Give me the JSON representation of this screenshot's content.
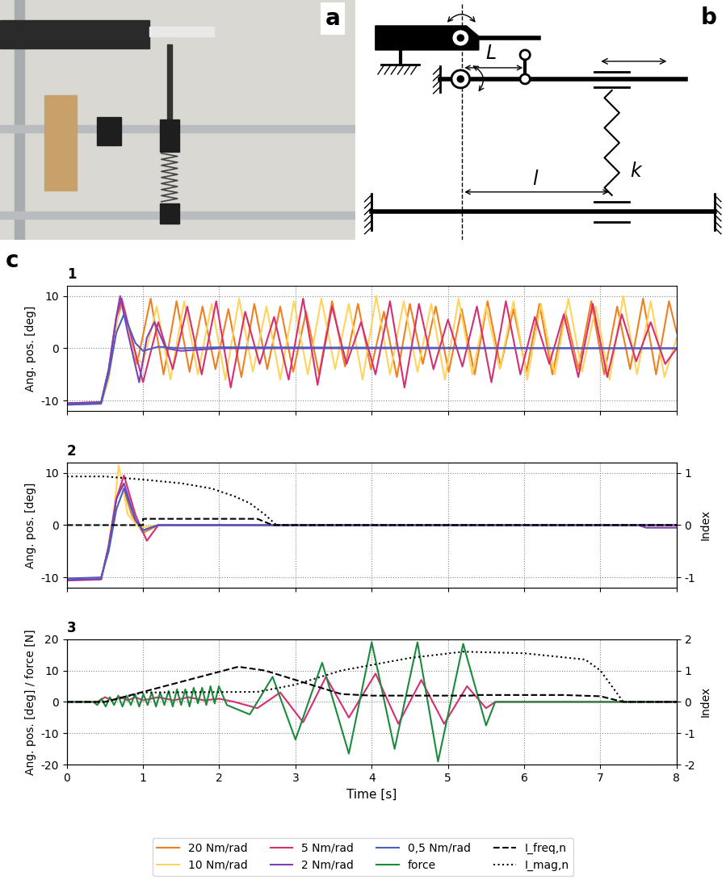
{
  "figure": {
    "panel_labels": {
      "photo": "a",
      "diagram": "b",
      "charts": "c"
    },
    "legend": "lower center"
  },
  "diagram": {
    "arm_label": "L",
    "spring_distance_label": "l",
    "spring_label": "k"
  },
  "chart_data": [
    {
      "type": "line",
      "title": "1",
      "y_label": "Ang. pos. [deg]",
      "xlim": [
        0,
        8
      ],
      "xticks": [
        0,
        1,
        2,
        3,
        4,
        5,
        6,
        7,
        8
      ],
      "ylim": [
        -12,
        12
      ],
      "yticks": [
        -10,
        0,
        10
      ],
      "grid": true,
      "tick_labels": "y",
      "series": [
        {
          "name": "20 Nm/rad",
          "color": "#f07f1e",
          "line_style": "solid",
          "x": [
            0,
            0.45,
            0.55,
            0.65,
            0.72,
            0.82,
            0.92,
            1.1,
            1.27,
            1.44,
            1.61,
            1.78,
            1.95,
            2.12,
            2.29,
            2.46,
            2.63,
            2.8,
            2.97,
            3.14,
            3.31,
            3.48,
            3.65,
            3.82,
            3.99,
            4.16,
            4.33,
            4.5,
            4.67,
            4.84,
            5.01,
            5.18,
            5.35,
            5.52,
            5.69,
            5.86,
            6.03,
            6.2,
            6.37,
            6.54,
            6.71,
            6.88,
            7.05,
            7.22,
            7.39,
            7.56,
            7.73,
            7.9,
            8.0
          ],
          "values": [
            -10.5,
            -10.3,
            -5,
            5,
            8.5,
            3,
            -3,
            9.5,
            -5,
            9,
            -4.5,
            8,
            -4,
            7.5,
            -5.5,
            8.5,
            -4,
            8,
            -4.5,
            7,
            -5,
            9,
            -3.5,
            8.5,
            -4,
            7,
            -5.5,
            8.5,
            -3,
            8,
            -4.5,
            7.5,
            -5,
            9,
            -3.5,
            7.5,
            -4.5,
            8.5,
            -5,
            7,
            -4,
            9,
            -5,
            8,
            -4,
            9.5,
            -5,
            9,
            3
          ]
        },
        {
          "name": "10 Nm/rad",
          "color": "#ffd35c",
          "line_style": "solid",
          "x": [
            0,
            0.45,
            0.55,
            0.65,
            0.7,
            0.8,
            0.9,
            1.0,
            1.18,
            1.36,
            1.54,
            1.72,
            1.9,
            2.08,
            2.26,
            2.44,
            2.62,
            2.8,
            2.98,
            3.16,
            3.34,
            3.52,
            3.7,
            3.88,
            4.06,
            4.24,
            4.42,
            4.6,
            4.78,
            4.96,
            5.14,
            5.32,
            5.5,
            5.68,
            5.86,
            6.04,
            6.22,
            6.4,
            6.58,
            6.76,
            6.94,
            7.12,
            7.3,
            7.48,
            7.66,
            7.84,
            8.0
          ],
          "values": [
            -10.8,
            -10.6,
            -6,
            4,
            9.5,
            4,
            -1.5,
            -3,
            8,
            -6,
            9,
            -5,
            8.5,
            -6,
            9.5,
            -4.5,
            8,
            -6,
            9,
            -5,
            9.5,
            -4,
            8.5,
            -6,
            10,
            -5,
            9,
            -4.5,
            8.5,
            -6,
            9.5,
            -5,
            8,
            -4,
            9,
            -6,
            8.5,
            -5,
            9.5,
            -4.5,
            8,
            -6,
            10,
            -5,
            9,
            -5.5,
            2
          ]
        },
        {
          "name": "5 Nm/rad",
          "color": "#d62e73",
          "line_style": "solid",
          "x": [
            0,
            0.45,
            0.55,
            0.65,
            0.72,
            0.85,
            1.0,
            1.2,
            1.39,
            1.58,
            1.77,
            1.96,
            2.15,
            2.34,
            2.53,
            2.72,
            2.91,
            3.1,
            3.29,
            3.48,
            3.67,
            3.86,
            4.05,
            4.24,
            4.43,
            4.62,
            4.81,
            5.0,
            5.19,
            5.38,
            5.57,
            5.76,
            5.95,
            6.14,
            6.33,
            6.52,
            6.71,
            6.9,
            7.09,
            7.28,
            7.47,
            7.66,
            7.85,
            8.0
          ],
          "values": [
            -10.6,
            -10.4,
            -4,
            6,
            9.5,
            2,
            -6.5,
            5,
            -4,
            8,
            -5,
            9,
            -7.5,
            7,
            -3,
            6,
            -6,
            9.5,
            -7,
            8,
            -3,
            5,
            -5,
            9,
            -7.5,
            8.5,
            -4,
            5.5,
            -3.5,
            8,
            -6.5,
            9,
            -5,
            6,
            -3,
            6.5,
            -5.5,
            8.5,
            -5.5,
            6.5,
            -2.5,
            5,
            -3,
            0
          ]
        },
        {
          "name": "2 Nm/rad",
          "color": "#7e3fb8",
          "line_style": "solid",
          "x": [
            0,
            0.45,
            0.55,
            0.65,
            0.7,
            0.8,
            0.95,
            1.05,
            1.15,
            1.3,
            1.5,
            2.0,
            8.0
          ],
          "values": [
            -10.5,
            -10.3,
            -4,
            6,
            10,
            3,
            -6.5,
            2,
            5,
            0,
            -0.5,
            0,
            0
          ]
        },
        {
          "name": "0,5 Nm/rad",
          "color": "#4b5fc0",
          "line_style": "solid",
          "x": [
            0,
            0.45,
            0.55,
            0.65,
            0.75,
            0.9,
            1.0,
            1.2,
            1.5,
            2.0,
            8.0
          ],
          "values": [
            -10.8,
            -10.6,
            -5,
            3,
            6.5,
            1,
            -0.5,
            0.3,
            0,
            0.2,
            0
          ]
        }
      ]
    },
    {
      "type": "line",
      "title": "2",
      "y_label": "Ang. pos. [deg]",
      "y2_label": "Index",
      "xlim": [
        0,
        8
      ],
      "xticks": [
        0,
        1,
        2,
        3,
        4,
        5,
        6,
        7,
        8
      ],
      "ylim": [
        -12,
        12
      ],
      "yticks": [
        -10,
        0,
        10
      ],
      "y2lim": [
        -1.2,
        1.2
      ],
      "y2ticks": [
        -1,
        0,
        1
      ],
      "grid": true,
      "tick_labels": "y",
      "series": [
        {
          "name": "20 Nm/rad",
          "color": "#f07f1e",
          "line_style": "solid",
          "x": [
            0,
            0.45,
            0.55,
            0.65,
            0.72,
            0.85,
            1.0,
            1.2,
            8.0
          ],
          "values": [
            -10.5,
            -10.3,
            -4,
            5,
            8,
            2,
            -1.5,
            0,
            0
          ]
        },
        {
          "name": "10 Nm/rad",
          "color": "#ffd35c",
          "line_style": "solid",
          "x": [
            0,
            0.45,
            0.52,
            0.62,
            0.68,
            0.8,
            0.95,
            1.2,
            8.0
          ],
          "values": [
            -10.3,
            -10.1,
            -6,
            3,
            11.5,
            2,
            -0.5,
            0,
            0
          ]
        },
        {
          "name": "5 Nm/rad",
          "color": "#d62e73",
          "line_style": "solid",
          "x": [
            0,
            0.45,
            0.55,
            0.65,
            0.75,
            0.9,
            1.05,
            1.2,
            8.0
          ],
          "values": [
            -10.6,
            -10.4,
            -4,
            5,
            9.5,
            2,
            -3,
            0,
            0
          ]
        },
        {
          "name": "2 Nm/rad",
          "color": "#7e3fb8",
          "line_style": "solid",
          "x": [
            0,
            0.45,
            0.55,
            0.65,
            0.75,
            0.9,
            1.0,
            1.2,
            7.5,
            7.6,
            8.0
          ],
          "values": [
            -10.5,
            -10.3,
            -4,
            5,
            8,
            1,
            -1,
            0,
            0,
            -0.5,
            -0.5
          ]
        },
        {
          "name": "0,5 Nm/rad",
          "color": "#4b5fc0",
          "line_style": "solid",
          "x": [
            0,
            0.45,
            0.55,
            0.65,
            0.75,
            0.9,
            1.0,
            1.2,
            8.0
          ],
          "values": [
            -10.2,
            -10,
            -5,
            3,
            7,
            1,
            -1,
            0,
            0
          ]
        },
        {
          "name": "I_freq,n",
          "color": "#000000",
          "line_style": "dashed",
          "axis": "y2",
          "x": [
            0,
            1.0,
            1.0,
            2.5,
            2.7,
            8.0
          ],
          "values": [
            0,
            0,
            0.12,
            0.12,
            0,
            0
          ]
        },
        {
          "name": "I_mag,n",
          "color": "#000000",
          "line_style": "dotted",
          "axis": "y2",
          "x": [
            0,
            0.5,
            1.0,
            1.5,
            1.9,
            2.2,
            2.4,
            2.6,
            2.75,
            8.0
          ],
          "values": [
            0.93,
            0.93,
            0.87,
            0.8,
            0.7,
            0.55,
            0.42,
            0.2,
            0,
            0
          ]
        }
      ]
    },
    {
      "type": "line",
      "title": "3",
      "x_label": "Time [s]",
      "y_label": "Ang. pos. [deg] / force [N]",
      "y2_label": "Index",
      "xlim": [
        0,
        8
      ],
      "xticks": [
        0,
        1,
        2,
        3,
        4,
        5,
        6,
        7,
        8
      ],
      "ylim": [
        -20,
        20
      ],
      "yticks": [
        -20,
        -10,
        0,
        10,
        20
      ],
      "y2lim": [
        -2,
        2
      ],
      "y2ticks": [
        -2,
        -1,
        0,
        1,
        2
      ],
      "grid": true,
      "series": [
        {
          "name": "5 Nm/rad",
          "color": "#d62e73",
          "line_style": "solid",
          "x": [
            0,
            0.4,
            0.5,
            0.6,
            0.7,
            0.8,
            0.9,
            1.0,
            1.2,
            1.4,
            1.6,
            1.8,
            2.0,
            2.2,
            2.5,
            2.8,
            3.1,
            3.4,
            3.7,
            4.05,
            4.35,
            4.65,
            4.95,
            5.25,
            5.5,
            5.62,
            8.0
          ],
          "values": [
            0,
            0,
            1.5,
            0.5,
            1.5,
            0.5,
            1.5,
            0.5,
            1.5,
            0.5,
            1.5,
            0.5,
            1,
            0,
            -2,
            3,
            -6.5,
            8,
            -5,
            9,
            -7,
            7,
            -7,
            5,
            -2,
            0,
            0
          ]
        },
        {
          "name": "force",
          "color": "#1b8a3c",
          "line_style": "solid",
          "x": [
            0,
            0.35,
            0.4,
            0.455,
            0.51,
            0.565,
            0.62,
            0.675,
            0.73,
            0.785,
            0.84,
            0.895,
            0.95,
            1.005,
            1.06,
            1.115,
            1.17,
            1.225,
            1.28,
            1.335,
            1.39,
            1.445,
            1.5,
            1.555,
            1.61,
            1.665,
            1.72,
            1.775,
            1.83,
            1.885,
            1.94,
            1.995,
            2.1,
            2.4,
            2.7,
            3.0,
            3.35,
            3.7,
            4.0,
            4.3,
            4.6,
            4.87,
            5.2,
            5.5,
            5.62,
            8.0
          ],
          "values": [
            0,
            0,
            -1,
            1,
            -1.5,
            1.5,
            -1,
            2,
            -1.5,
            2,
            -1,
            2.5,
            -1.5,
            2.5,
            -1,
            3,
            -1.5,
            3,
            -1,
            3.5,
            -1.5,
            4,
            -1,
            4,
            -1.5,
            4.5,
            -0.5,
            4.5,
            -1,
            5,
            -0.5,
            5,
            -1,
            -4,
            8,
            -12,
            12.5,
            -16.5,
            19,
            -15,
            19,
            -19,
            18.5,
            -7.5,
            0,
            0
          ]
        },
        {
          "name": "I_freq,n",
          "color": "#000000",
          "line_style": "dashed",
          "axis": "y2",
          "x": [
            0,
            0.5,
            2.25,
            2.6,
            3.0,
            3.6,
            4.0,
            5.3,
            5.4,
            6.5,
            7.0,
            7.3,
            8.0
          ],
          "values": [
            0,
            0,
            1.12,
            1.0,
            0.7,
            0.25,
            0.2,
            0.2,
            0.22,
            0.22,
            0.18,
            0,
            0
          ]
        },
        {
          "name": "I_mag,n",
          "color": "#000000",
          "line_style": "dotted",
          "axis": "y2",
          "x": [
            0,
            0.5,
            1.0,
            2.5,
            3.0,
            3.6,
            4.5,
            5.2,
            6.0,
            6.8,
            7.0,
            7.3,
            8.0
          ],
          "values": [
            0,
            0,
            0.3,
            0.32,
            0.55,
            1.0,
            1.4,
            1.6,
            1.55,
            1.35,
            1.0,
            0,
            0
          ]
        }
      ]
    }
  ]
}
